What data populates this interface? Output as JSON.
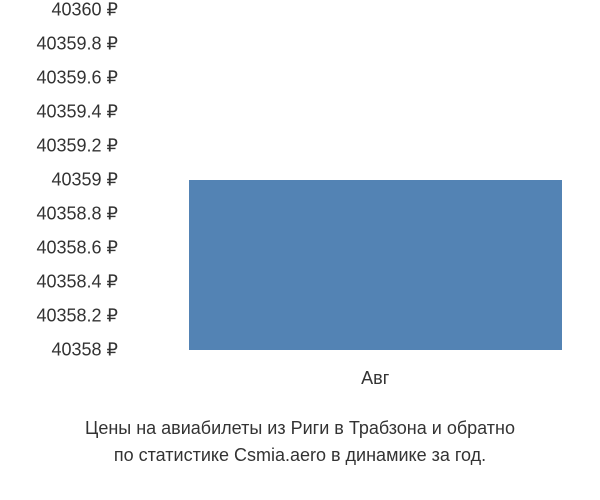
{
  "chart": {
    "type": "bar",
    "background_color": "#ffffff",
    "text_color": "#333333",
    "tick_fontsize": 18,
    "caption_fontsize": 18,
    "ylim": [
      40358,
      40360
    ],
    "y_ticks": [
      {
        "value": 40360,
        "label": "40360 ₽"
      },
      {
        "value": 40359.8,
        "label": "40359.8 ₽"
      },
      {
        "value": 40359.6,
        "label": "40359.6 ₽"
      },
      {
        "value": 40359.4,
        "label": "40359.4 ₽"
      },
      {
        "value": 40359.2,
        "label": "40359.2 ₽"
      },
      {
        "value": 40359,
        "label": "40359 ₽"
      },
      {
        "value": 40358.8,
        "label": "40358.8 ₽"
      },
      {
        "value": 40358.6,
        "label": "40358.6 ₽"
      },
      {
        "value": 40358.4,
        "label": "40358.4 ₽"
      },
      {
        "value": 40358.2,
        "label": "40358.2 ₽"
      },
      {
        "value": 40358,
        "label": "40358 ₽"
      }
    ],
    "x_ticks": [
      {
        "label": "Авг",
        "center_frac": 0.55
      }
    ],
    "bars": [
      {
        "value": 40359,
        "color": "#5383b4",
        "left_frac": 0.14,
        "width_frac": 0.82
      }
    ],
    "caption_line1": "Цены на авиабилеты из Риги в Трабзона и обратно",
    "caption_line2": "по статистике Csmia.aero в динамике за год."
  }
}
